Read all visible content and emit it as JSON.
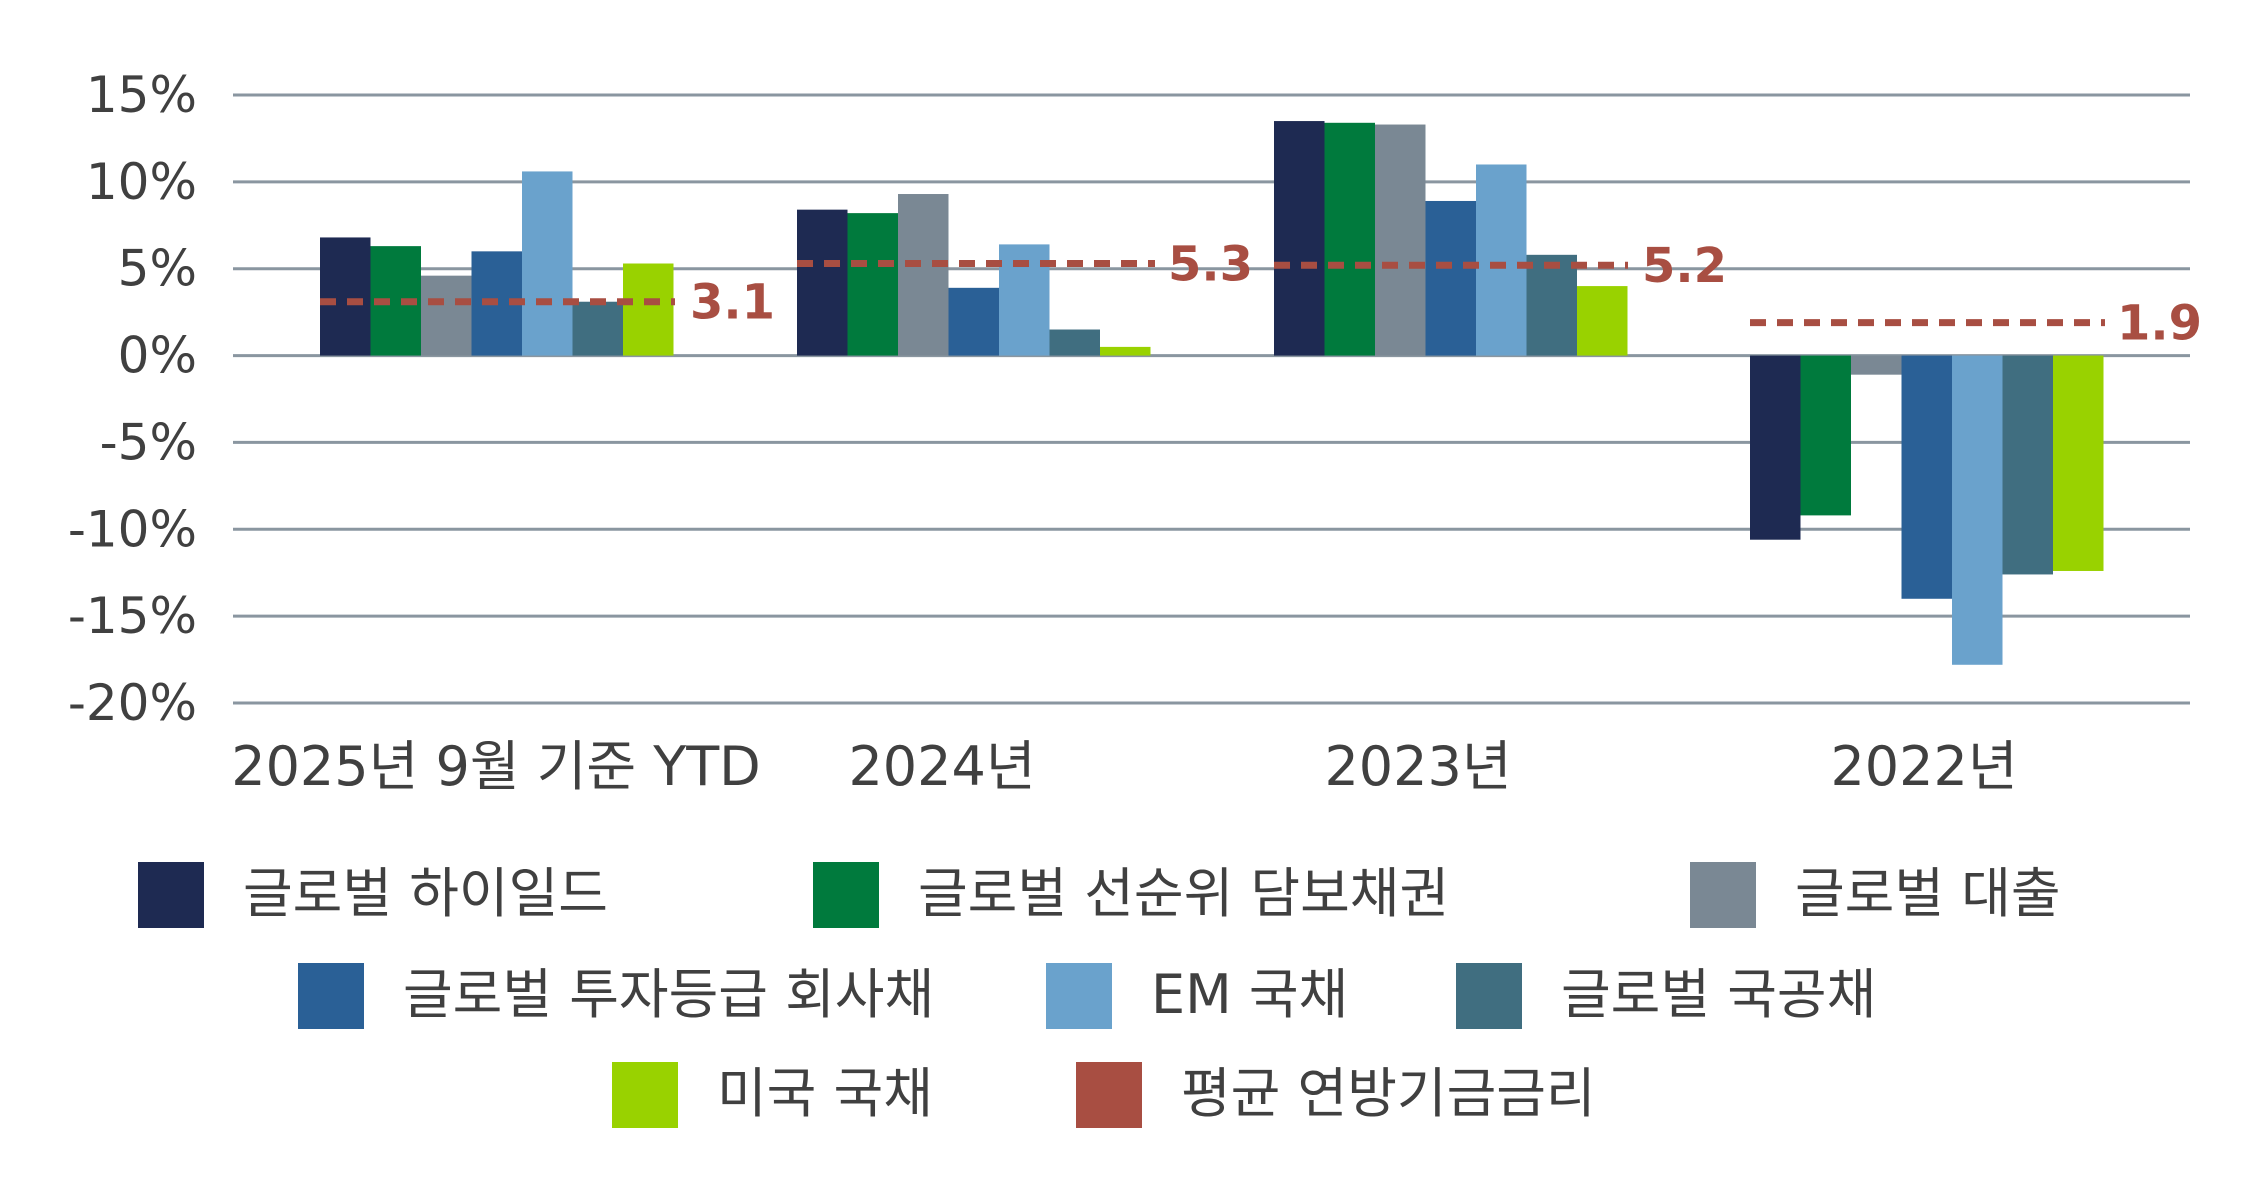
{
  "chart_data": {
    "type": "bar",
    "categories": [
      "2025년 9월 기준 YTD",
      "2024년",
      "2023년",
      "2022년"
    ],
    "yticks": [
      "15%",
      "10%",
      "5%",
      "0%",
      "-5%",
      "-10%",
      "-15%",
      "-20%"
    ],
    "ylim": [
      -20,
      15
    ],
    "grid": true,
    "legend_position": "bottom",
    "series": [
      {
        "name": "글로벌 하이일드",
        "color": "#1e2a52",
        "values": [
          6.8,
          8.4,
          13.5,
          -10.6
        ]
      },
      {
        "name": "글로벌 선순위 담보채권",
        "color": "#007a3d",
        "values": [
          6.3,
          8.2,
          13.4,
          -9.2
        ]
      },
      {
        "name": "글로벌 대출",
        "color": "#7a8894",
        "values": [
          4.6,
          9.3,
          13.3,
          -1.1
        ]
      },
      {
        "name": "글로벌 투자등급 회사채",
        "color": "#2a6096",
        "values": [
          6.0,
          3.9,
          8.9,
          -14.0
        ]
      },
      {
        "name": "EM 국채",
        "color": "#6aa2cc",
        "values": [
          10.6,
          6.4,
          11.0,
          -17.8
        ]
      },
      {
        "name": "글로벌 국공채",
        "color": "#406e80",
        "values": [
          3.1,
          1.5,
          5.8,
          -12.6
        ]
      },
      {
        "name": "미국 국채",
        "color": "#99d200",
        "values": [
          5.3,
          0.5,
          4.0,
          -12.4
        ]
      }
    ],
    "line_series": {
      "name": "평균 연방기금금리",
      "color": "#a84e42",
      "style": "dashed",
      "values": [
        3.1,
        5.3,
        5.2,
        1.9
      ],
      "labels": [
        "3.1",
        "5.3",
        "5.2",
        "1.9"
      ]
    }
  }
}
